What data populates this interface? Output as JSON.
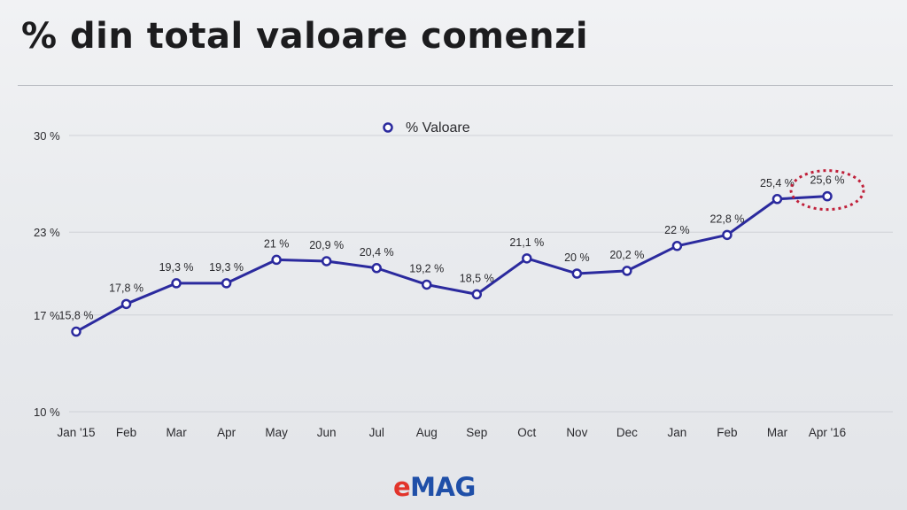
{
  "slide": {
    "title": "% din total valoare comenzi"
  },
  "chart_data": {
    "type": "line",
    "categories": [
      "Jan '15",
      "Feb",
      "Mar",
      "Apr",
      "May",
      "Jun",
      "Jul",
      "Aug",
      "Sep",
      "Oct",
      "Nov",
      "Dec",
      "Jan",
      "Feb",
      "Mar",
      "Apr '16"
    ],
    "series": [
      {
        "name": "% Valoare",
        "values": [
          15.8,
          17.8,
          19.3,
          19.3,
          21,
          20.9,
          20.4,
          19.2,
          18.5,
          21.1,
          20,
          20.2,
          22,
          22.8,
          25.4,
          25.6
        ],
        "data_labels": [
          "15,8 %",
          "17,8 %",
          "19,3 %",
          "19,3 %",
          "21 %",
          "20,9 %",
          "20,4 %",
          "19,2 %",
          "18,5 %",
          "21,1 %",
          "20 %",
          "20,2 %",
          "22 %",
          "22,8 %",
          "25,4 %",
          "25,6 %"
        ]
      }
    ],
    "y_ticks": [
      10,
      17,
      23,
      30
    ],
    "y_tick_labels": [
      "10 %",
      "17 %",
      "23 %",
      "30 %"
    ],
    "ylim": [
      10,
      30
    ],
    "grid": true,
    "legend_position": "top-center",
    "highlighted_point": "Apr '16",
    "colors": {
      "line": "#2b2a9e",
      "highlight": "#c0203a",
      "grid": "#cfd2d7",
      "text": "#2a2a2e"
    }
  },
  "footer": {
    "logo_e": "e",
    "logo_rest": "MAG",
    "logo_colors": {
      "e": "#e2342b",
      "rest": "#1f4fa8"
    }
  }
}
